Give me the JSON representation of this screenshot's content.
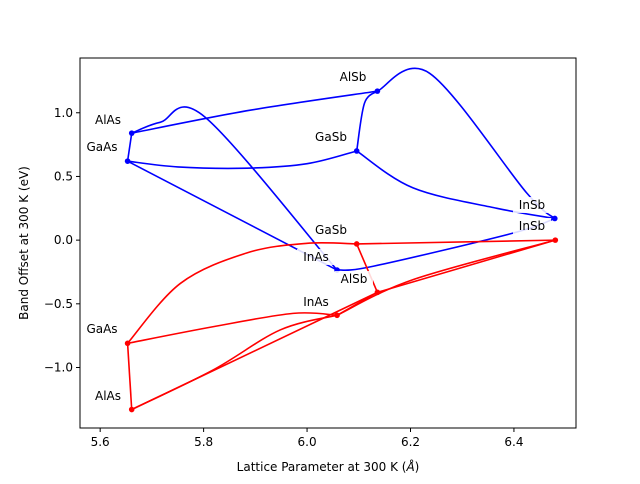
{
  "chart_data": {
    "type": "line",
    "title": "",
    "xlabel": "Lattice Parameter at 300 K (",
    "xlabel_unit": "Å",
    "xlabel_close": ")",
    "ylabel": "Band Offset at 300 K (eV)",
    "xlim": [
      5.561,
      6.52
    ],
    "ylim": [
      -1.475,
      1.43
    ],
    "xticks": [
      5.6,
      5.8,
      6.0,
      6.2,
      6.4
    ],
    "xtick_labels": [
      "5.6",
      "5.8",
      "6.0",
      "6.2",
      "6.4"
    ],
    "yticks": [
      -1.0,
      -0.5,
      0.0,
      0.5,
      1.0
    ],
    "ytick_labels": [
      "−1.0",
      "−0.5",
      "0.0",
      "0.5",
      "1.0"
    ],
    "grid": false,
    "colors": {
      "upper": "#0000ff",
      "lower": "#ff0000"
    },
    "points": {
      "upper": [
        {
          "name": "GaAs",
          "x": 5.653,
          "y": 0.62
        },
        {
          "name": "AlAs",
          "x": 5.661,
          "y": 0.84
        },
        {
          "name": "AlSb",
          "x": 6.136,
          "y": 1.17
        },
        {
          "name": "GaSb",
          "x": 6.096,
          "y": 0.7
        },
        {
          "name": "InSb",
          "x": 6.479,
          "y": 0.17
        },
        {
          "name": "InAs",
          "x": 6.058,
          "y": -0.235
        }
      ],
      "lower": [
        {
          "name": "GaAs",
          "x": 5.653,
          "y": -0.81
        },
        {
          "name": "AlAs",
          "x": 5.661,
          "y": -1.33
        },
        {
          "name": "AlSb",
          "x": 6.136,
          "y": -0.41
        },
        {
          "name": "GaSb",
          "x": 6.096,
          "y": -0.03
        },
        {
          "name": "InSb",
          "x": 6.48,
          "y": 0.0
        },
        {
          "name": "InAs",
          "x": 6.058,
          "y": -0.59
        }
      ]
    },
    "curves": {
      "upper": [
        {
          "x": [
            5.653,
            5.661
          ],
          "y": [
            0.62,
            0.84
          ]
        },
        {
          "x": [
            5.661,
            5.716,
            5.803,
            6.058
          ],
          "y": [
            0.84,
            0.925,
            0.965,
            -0.235
          ]
        },
        {
          "x": [
            5.661,
            5.89,
            6.136
          ],
          "y": [
            0.84,
            1.02,
            1.17
          ]
        },
        {
          "x": [
            6.136,
            6.111,
            6.096
          ],
          "y": [
            1.17,
            1.075,
            0.7
          ]
        },
        {
          "x": [
            6.136,
            6.237,
            6.425,
            6.479
          ],
          "y": [
            1.17,
            1.31,
            0.369,
            0.17
          ]
        },
        {
          "x": [
            5.653,
            5.75,
            5.884,
            6.0,
            6.096
          ],
          "y": [
            0.62,
            0.575,
            0.565,
            0.6,
            0.7
          ]
        },
        {
          "x": [
            6.096,
            6.205,
            6.367,
            6.479
          ],
          "y": [
            0.7,
            0.41,
            0.25,
            0.17
          ]
        },
        {
          "x": [
            5.653,
            6.058
          ],
          "y": [
            0.62,
            -0.235
          ]
        },
        {
          "x": [
            6.058,
            6.128,
            6.398,
            6.479
          ],
          "y": [
            -0.235,
            -0.205,
            0.055,
            0.17
          ]
        }
      ],
      "lower": [
        {
          "x": [
            5.653,
            5.661
          ],
          "y": [
            -0.81,
            -1.33
          ]
        },
        {
          "x": [
            5.653,
            5.755,
            5.884,
            6.0,
            6.096
          ],
          "y": [
            -0.81,
            -0.34,
            -0.1,
            -0.025,
            -0.03
          ]
        },
        {
          "x": [
            5.653,
            5.818,
            5.973,
            6.058
          ],
          "y": [
            -0.81,
            -0.68,
            -0.575,
            -0.59
          ]
        },
        {
          "x": [
            5.661,
            5.818,
            5.948,
            6.058
          ],
          "y": [
            -1.33,
            -1.02,
            -0.705,
            -0.59
          ]
        },
        {
          "x": [
            5.661,
            6.136
          ],
          "y": [
            -1.33,
            -0.41
          ]
        },
        {
          "x": [
            6.096,
            6.136
          ],
          "y": [
            -0.03,
            -0.41
          ]
        },
        {
          "x": [
            6.096,
            6.48
          ],
          "y": [
            -0.03,
            0.0
          ]
        },
        {
          "x": [
            6.136,
            6.48
          ],
          "y": [
            -0.41,
            0.0
          ]
        },
        {
          "x": [
            6.058,
            6.205,
            6.48
          ],
          "y": [
            -0.59,
            -0.31,
            0.0
          ]
        },
        {
          "x": [
            6.058,
            6.136
          ],
          "y": [
            -0.59,
            -0.41
          ]
        }
      ]
    },
    "annotations": [
      "AlSb",
      "GaSb",
      "AlAs",
      "GaAs",
      "InSb",
      "InSb",
      "GaSb",
      "InAs",
      "AlSb",
      "InAs",
      "GaAs",
      "AlAs"
    ]
  }
}
